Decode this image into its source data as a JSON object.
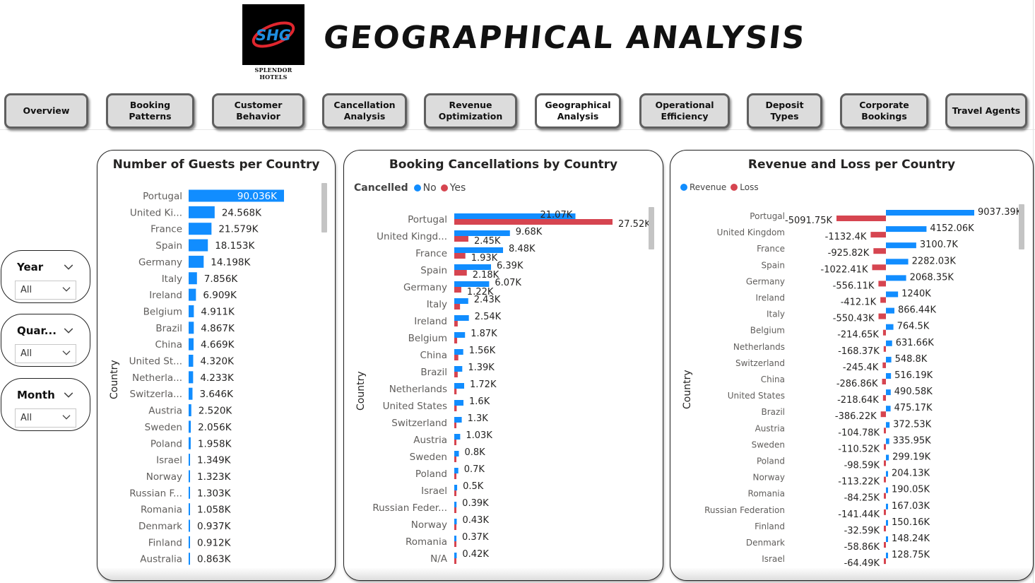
{
  "header": {
    "title": "GEOGRAPHICAL ANALYSIS",
    "logo_mark": "SHG",
    "logo_text": "SPLENDOR HOTELS"
  },
  "nav": [
    {
      "label": "Overview",
      "active": false
    },
    {
      "label": "Booking\nPatterns",
      "active": false
    },
    {
      "label": "Customer\nBehavior",
      "active": false
    },
    {
      "label": "Cancellation\nAnalysis",
      "active": false
    },
    {
      "label": "Revenue\nOptimization",
      "active": false
    },
    {
      "label": "Geographical\nAnalysis",
      "active": true
    },
    {
      "label": "Operational\nEfficiency",
      "active": false
    },
    {
      "label": "Deposit\nTypes",
      "active": false
    },
    {
      "label": "Corporate\nBookings",
      "active": false
    },
    {
      "label": "Travel Agents",
      "active": false
    }
  ],
  "slicers": [
    {
      "title": "Year",
      "value": "All"
    },
    {
      "title": "Quar...",
      "value": "All"
    },
    {
      "title": "Month",
      "value": "All"
    }
  ],
  "colors": {
    "blue": "#118DFF",
    "red": "#D64550",
    "text": "#252423",
    "label": "#605E5C"
  },
  "chart_data": [
    {
      "type": "bar",
      "orientation": "horizontal",
      "title": "Number of Guests per Country",
      "ylabel": "Country",
      "categories": [
        "Portugal",
        "United Ki...",
        "France",
        "Spain",
        "Germany",
        "Italy",
        "Ireland",
        "Belgium",
        "Brazil",
        "China",
        "United St...",
        "Netherla...",
        "Switzerla...",
        "Austria",
        "Sweden",
        "Poland",
        "Israel",
        "Norway",
        "Russian F...",
        "Romania",
        "Denmark",
        "Finland",
        "Australia"
      ],
      "values": [
        90036,
        24568,
        21579,
        18153,
        14198,
        7856,
        6909,
        4911,
        4867,
        4669,
        4320,
        4233,
        3646,
        2520,
        2056,
        1958,
        1349,
        1323,
        1303,
        1058,
        937,
        912,
        863
      ],
      "labels": [
        "90.036K",
        "24.568K",
        "21.579K",
        "18.153K",
        "14.198K",
        "7.856K",
        "6.909K",
        "4.911K",
        "4.867K",
        "4.669K",
        "4.320K",
        "4.233K",
        "3.646K",
        "2.520K",
        "2.056K",
        "1.958K",
        "1.349K",
        "1.323K",
        "1.303K",
        "1.058K",
        "0.937K",
        "0.912K",
        "0.863K"
      ]
    },
    {
      "type": "bar",
      "orientation": "horizontal",
      "title": "Booking Cancellations by Country",
      "ylabel": "Country",
      "legend": {
        "title": "Cancelled",
        "items": [
          "No",
          "Yes"
        ],
        "position": "top-left"
      },
      "categories": [
        "Portugal",
        "United Kingd...",
        "France",
        "Spain",
        "Germany",
        "Italy",
        "Ireland",
        "Belgium",
        "China",
        "Brazil",
        "Netherlands",
        "United States",
        "Switzerland",
        "Austria",
        "Sweden",
        "Poland",
        "Israel",
        "Russian Feder...",
        "Norway",
        "Romania",
        "N/A"
      ],
      "series": [
        {
          "name": "No",
          "values": [
            21070,
            9680,
            8480,
            6390,
            6070,
            2430,
            2540,
            1870,
            1560,
            1390,
            1720,
            1600,
            1300,
            1030,
            800,
            700,
            500,
            390,
            430,
            370,
            420
          ],
          "labels": [
            "21.07K",
            "9.68K",
            "8.48K",
            "6.39K",
            "6.07K",
            "2.43K",
            "2.54K",
            "1.87K",
            "1.56K",
            "1.39K",
            "1.72K",
            "1.6K",
            "1.3K",
            "1.03K",
            "0.8K",
            "0.7K",
            "0.5K",
            "0.39K",
            "0.43K",
            "0.37K",
            "0.42K"
          ]
        },
        {
          "name": "Yes",
          "values": [
            27520,
            2450,
            1930,
            2180,
            1220,
            1000,
            600,
            500,
            700,
            600,
            400,
            420,
            300,
            280,
            200,
            150,
            100,
            200,
            100,
            150,
            100
          ],
          "labels": [
            "27.52K",
            "2.45K",
            "1.93K",
            "2.18K",
            "1.22K",
            "",
            "",
            "",
            "",
            "",
            "",
            "",
            "",
            "",
            "",
            "",
            "",
            "",
            "",
            "",
            ""
          ]
        }
      ]
    },
    {
      "type": "bar",
      "orientation": "horizontal",
      "title": "Revenue and Loss per Country",
      "ylabel": "Country",
      "legend": {
        "items": [
          "Revenue",
          "Loss"
        ],
        "position": "top-left"
      },
      "categories": [
        "Portugal",
        "United Kingdom",
        "France",
        "Spain",
        "Germany",
        "Ireland",
        "Italy",
        "Belgium",
        "Netherlands",
        "Switzerland",
        "China",
        "United States",
        "Brazil",
        "Austria",
        "Sweden",
        "Poland",
        "Norway",
        "Romania",
        "Russian Federation",
        "Finland",
        "Denmark",
        "Israel"
      ],
      "series": [
        {
          "name": "Revenue",
          "values": [
            9037390,
            4152060,
            3100700,
            2282030,
            2068350,
            1240000,
            866440,
            764500,
            631660,
            548800,
            516190,
            490580,
            475170,
            372530,
            335950,
            299190,
            204130,
            190050,
            167030,
            150160,
            148240,
            128750
          ],
          "labels": [
            "9037.39K",
            "4152.06K",
            "3100.7K",
            "2282.03K",
            "2068.35K",
            "1240K",
            "866.44K",
            "764.5K",
            "631.66K",
            "548.8K",
            "516.19K",
            "490.58K",
            "475.17K",
            "372.53K",
            "335.95K",
            "299.19K",
            "204.13K",
            "190.05K",
            "167.03K",
            "150.16K",
            "148.24K",
            "128.75K"
          ]
        },
        {
          "name": "Loss",
          "values": [
            -5091750,
            -1132400,
            -925820,
            -1022410,
            -556110,
            -412100,
            -550430,
            -214650,
            -168370,
            -245400,
            -286860,
            -218640,
            -386220,
            -104780,
            -110520,
            -98590,
            -113220,
            -84250,
            -141440,
            -32590,
            -58860,
            -64490
          ],
          "labels": [
            "-5091.75K",
            "-1132.4K",
            "-925.82K",
            "-1022.41K",
            "-556.11K",
            "-412.1K",
            "-550.43K",
            "-214.65K",
            "-168.37K",
            "-245.4K",
            "-286.86K",
            "-218.64K",
            "-386.22K",
            "-104.78K",
            "-110.52K",
            "-98.59K",
            "-113.22K",
            "-84.25K",
            "-141.44K",
            "-32.59K",
            "-58.86K",
            "-64.49K"
          ]
        }
      ]
    }
  ]
}
